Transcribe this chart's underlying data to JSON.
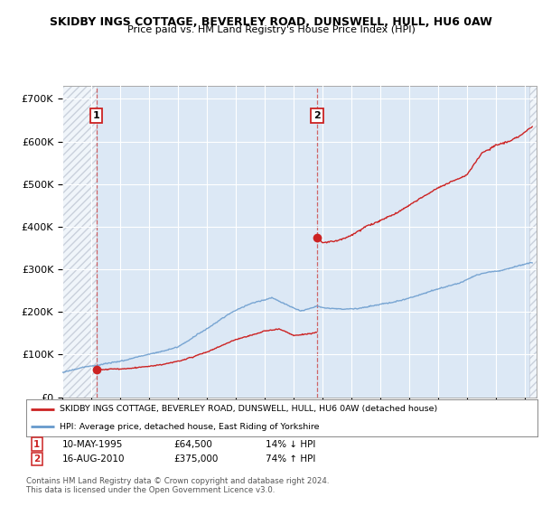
{
  "title": "SKIDBY INGS COTTAGE, BEVERLEY ROAD, DUNSWELL, HULL, HU6 0AW",
  "subtitle": "Price paid vs. HM Land Registry's House Price Index (HPI)",
  "ylabel_ticks": [
    "£0",
    "£100K",
    "£200K",
    "£300K",
    "£400K",
    "£500K",
    "£600K",
    "£700K"
  ],
  "ytick_vals": [
    0,
    100000,
    200000,
    300000,
    400000,
    500000,
    600000,
    700000
  ],
  "ylim": [
    0,
    730000
  ],
  "xlim_start": 1993.0,
  "xlim_end": 2025.8,
  "xticks": [
    1993,
    1995,
    1997,
    1999,
    2001,
    2003,
    2005,
    2007,
    2009,
    2011,
    2013,
    2015,
    2017,
    2019,
    2021,
    2023,
    2025
  ],
  "sale1_x": 1995.36,
  "sale1_y": 64500,
  "sale2_x": 2010.62,
  "sale2_y": 375000,
  "red_line_color": "#cc2222",
  "blue_line_color": "#6699cc",
  "dot_color": "#cc2222",
  "legend_label_red": "SKIDBY INGS COTTAGE, BEVERLEY ROAD, DUNSWELL, HULL, HU6 0AW (detached house)",
  "legend_label_blue": "HPI: Average price, detached house, East Riding of Yorkshire",
  "annotation1_label": "1",
  "annotation2_label": "2",
  "table_row1": [
    "1",
    "10-MAY-1995",
    "£64,500",
    "14% ↓ HPI"
  ],
  "table_row2": [
    "2",
    "16-AUG-2010",
    "£375,000",
    "74% ↑ HPI"
  ],
  "footer": "Contains HM Land Registry data © Crown copyright and database right 2024.\nThis data is licensed under the Open Government Licence v3.0.",
  "background_color": "#ffffff",
  "plot_bg_color": "#dce8f5"
}
